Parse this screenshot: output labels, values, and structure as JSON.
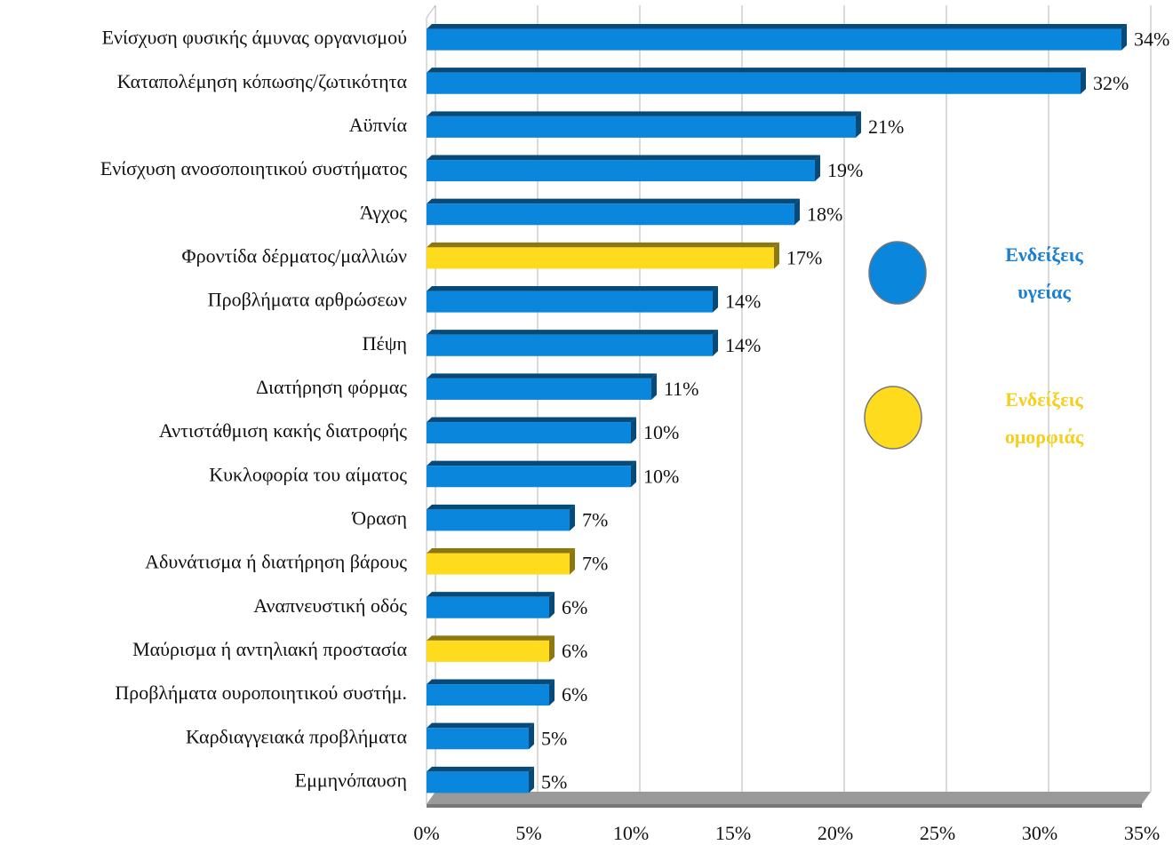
{
  "chart_data": {
    "type": "bar",
    "orientation": "horizontal",
    "categories": [
      "Ενίσχυση φυσικής άμυνας οργανισμού",
      "Καταπολέμηση κόπωσης/ζωτικότητα",
      "Αϋπνία",
      "Ενίσχυση ανοσοποιητικού συστήματος",
      "Άγχος",
      "Φροντίδα δέρματος/μαλλιών",
      "Προβλήματα αρθρώσεων",
      "Πέψη",
      "Διατήρηση φόρμας",
      "Αντιστάθμιση κακής διατροφής",
      "Κυκλοφορία του αίματος",
      "Όραση",
      "Αδυνάτισμα ή διατήρηση βάρους",
      "Αναπνευστική οδός",
      "Μαύρισμα ή αντηλιακή προστασία",
      "Προβλήματα ουροποιητικού συστήμ.",
      "Καρδιαγγειακά προβλήματα",
      "Εμμηνόπαυση"
    ],
    "values": [
      34,
      32,
      21,
      19,
      18,
      17,
      14,
      14,
      11,
      10,
      10,
      7,
      7,
      6,
      6,
      6,
      5,
      5
    ],
    "value_labels": [
      "34%",
      "32%",
      "21%",
      "19%",
      "18%",
      "17%",
      "14%",
      "14%",
      "11%",
      "10%",
      "10%",
      "7%",
      "7%",
      "6%",
      "6%",
      "6%",
      "5%",
      "5%"
    ],
    "colors": [
      "#0a86dc",
      "#0a86dc",
      "#0a86dc",
      "#0a86dc",
      "#0a86dc",
      "#ffdb1e",
      "#0a86dc",
      "#0a86dc",
      "#0a86dc",
      "#0a86dc",
      "#0a86dc",
      "#0a86dc",
      "#ffdb1e",
      "#0a86dc",
      "#ffdb1e",
      "#0a86dc",
      "#0a86dc",
      "#0a86dc"
    ],
    "xlim": [
      0,
      35
    ],
    "xticks": [
      {
        "value": 0,
        "label": "0%"
      },
      {
        "value": 5,
        "label": "5%"
      },
      {
        "value": 10,
        "label": "10%"
      },
      {
        "value": 15,
        "label": "15%"
      },
      {
        "value": 20,
        "label": "20%"
      },
      {
        "value": 25,
        "label": "25%"
      },
      {
        "value": 30,
        "label": "30%"
      },
      {
        "value": 35,
        "label": "35%"
      }
    ],
    "grid": true,
    "legend": [
      {
        "label_lines": [
          "Ενδείξεις",
          "υγείας"
        ],
        "color": "#0a86dc",
        "text_color": "#1b7fcf"
      },
      {
        "label_lines": [
          "Ενδείξεις",
          "ομορφιάς"
        ],
        "color": "#ffdb1e",
        "text_color": "#f5cf1c"
      }
    ]
  }
}
